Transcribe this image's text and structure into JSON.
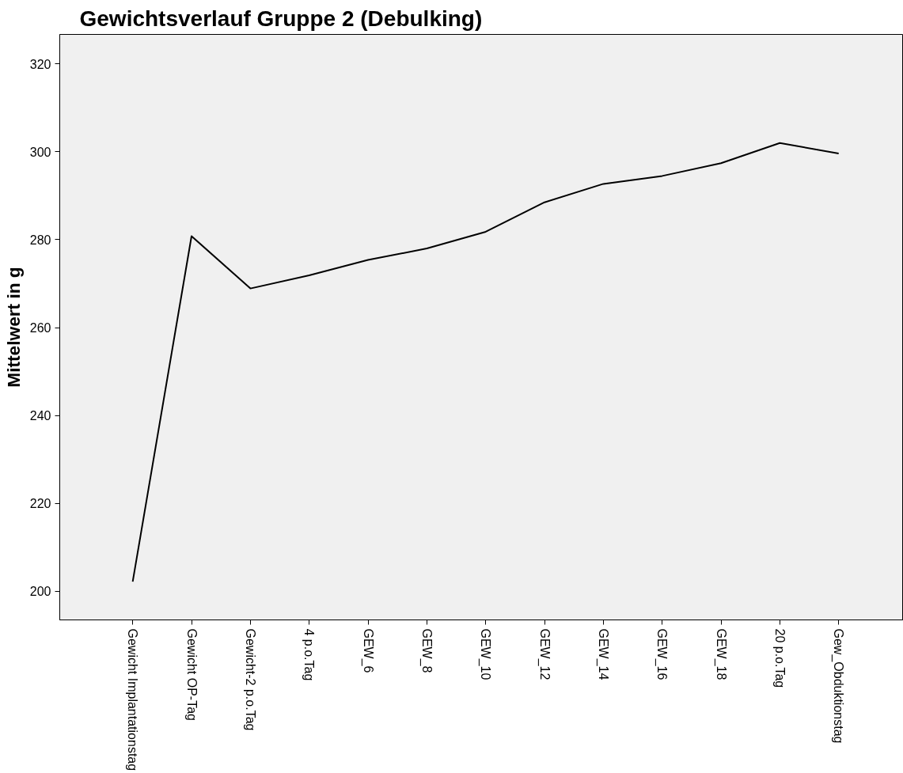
{
  "chart_data": {
    "type": "line",
    "title": "Gewichtsverlauf Gruppe 2 (Debulking)",
    "ylabel": "Mittelwert in g",
    "categories": [
      "Gewicht Implantationstag",
      "Gewicht OP-Tag",
      "Gewicht-2 p.o.Tag",
      "4 p.o.Tag",
      "GEW_6",
      "GEW_8",
      "GEW_10",
      "GEW_12",
      "GEW_14",
      "GEW_16",
      "GEW_18",
      "20 p.o.Tag",
      "Gew_Obduktionstag"
    ],
    "series": [
      {
        "color": "#000000",
        "values": [
          202.2,
          280.8,
          268.9,
          271.9,
          275.4,
          278.0,
          281.8,
          288.5,
          292.7,
          294.5,
          297.4,
          302.0,
          299.6
        ]
      }
    ],
    "ylim": [
      193.5,
      326.7
    ],
    "yticks": [
      200,
      220,
      240,
      260,
      280,
      300,
      320
    ],
    "grid": false,
    "marker": "none",
    "line_style": "solid"
  }
}
